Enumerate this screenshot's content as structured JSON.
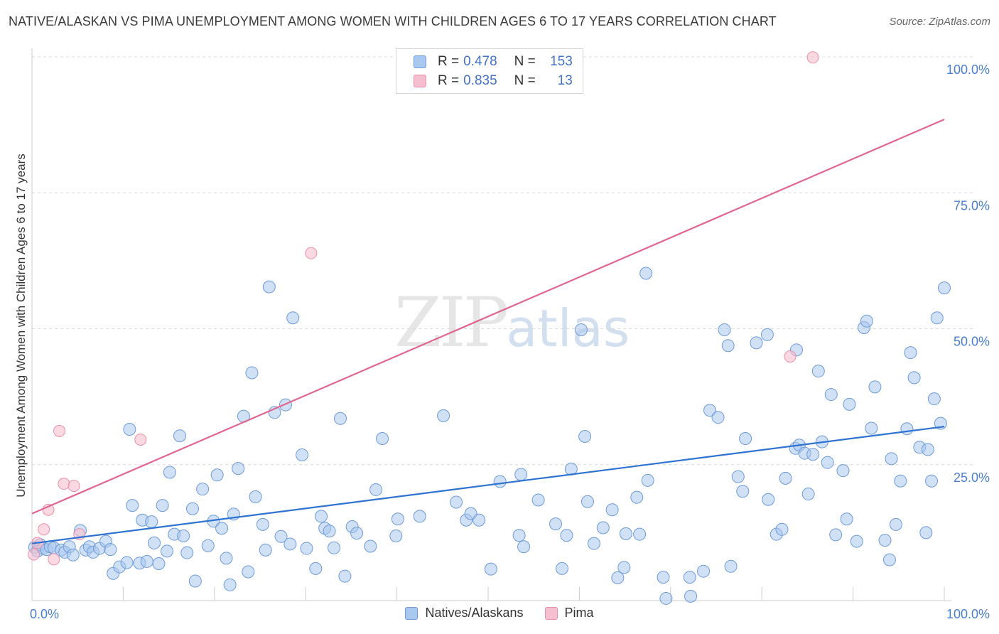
{
  "title": "NATIVE/ALASKAN VS PIMA UNEMPLOYMENT AMONG WOMEN WITH CHILDREN AGES 6 TO 17 YEARS CORRELATION CHART",
  "source": "Source: ZipAtlas.com",
  "watermark": {
    "zip": "ZIP",
    "atlas": "atlas"
  },
  "legend": {
    "rows": [
      {
        "r_label": "R =",
        "r_value": "0.478",
        "n_label": "N =",
        "n_value": "153"
      },
      {
        "r_label": "R =",
        "r_value": "0.835",
        "n_label": "N =",
        "n_value": "13"
      }
    ]
  },
  "bottom_legend": {
    "series1": "Natives/Alaskans",
    "series2": "Pima"
  },
  "colors": {
    "blue_fill": "#a9c8ef",
    "blue_stroke": "#6d9ad6",
    "blue_line": "#2e72d2",
    "pink_fill": "#f6bfcf",
    "pink_stroke": "#e890aa",
    "pink_line": "#e06690",
    "tick_label": "#4a7fd0",
    "grid": "#d9d9d9"
  },
  "chart_data": {
    "type": "scatter",
    "title": "NATIVE/ALASKAN VS PIMA UNEMPLOYMENT AMONG WOMEN WITH CHILDREN AGES 6 TO 17 YEARS CORRELATION CHART",
    "xlabel": "",
    "ylabel": "Unemployment Among Women with Children Ages 6 to 17 years",
    "xlim": [
      0,
      100
    ],
    "ylim": [
      0,
      100
    ],
    "x_tick_labels": [
      {
        "value": 0,
        "label": "0.0%"
      },
      {
        "value": 100,
        "label": "100.0%"
      }
    ],
    "y_tick_labels": [
      {
        "value": 25,
        "label": "25.0%"
      },
      {
        "value": 50,
        "label": "50.0%"
      },
      {
        "value": 75,
        "label": "75.0%"
      },
      {
        "value": 100,
        "label": "100.0%"
      }
    ],
    "series": [
      {
        "name": "Natives/Alaskans",
        "r": 0.478,
        "n": 153,
        "trendline": {
          "x": [
            0,
            100
          ],
          "y": [
            10.5,
            32.0
          ]
        },
        "points": [
          [
            0.3,
            9.8
          ],
          [
            0.6,
            9.1
          ],
          [
            0.9,
            10.3
          ],
          [
            1.2,
            9.6
          ],
          [
            1.6,
            9.4
          ],
          [
            2.0,
            9.9
          ],
          [
            2.4,
            9.7
          ],
          [
            3.2,
            9.3
          ],
          [
            3.6,
            8.9
          ],
          [
            4.1,
            9.9
          ],
          [
            4.5,
            8.4
          ],
          [
            5.3,
            12.9
          ],
          [
            5.9,
            9.3
          ],
          [
            6.3,
            9.9
          ],
          [
            6.7,
            8.9
          ],
          [
            7.4,
            9.6
          ],
          [
            8.1,
            10.9
          ],
          [
            8.6,
            9.4
          ],
          [
            8.9,
            5.0
          ],
          [
            9.6,
            6.2
          ],
          [
            10.4,
            7.0
          ],
          [
            10.7,
            31.5
          ],
          [
            11.0,
            17.5
          ],
          [
            11.8,
            6.9
          ],
          [
            12.1,
            14.8
          ],
          [
            12.6,
            7.2
          ],
          [
            13.1,
            14.5
          ],
          [
            13.4,
            10.6
          ],
          [
            13.9,
            6.8
          ],
          [
            14.3,
            17.5
          ],
          [
            14.8,
            9.1
          ],
          [
            15.1,
            23.6
          ],
          [
            15.6,
            12.2
          ],
          [
            16.2,
            30.3
          ],
          [
            16.6,
            11.9
          ],
          [
            17.0,
            8.8
          ],
          [
            17.6,
            16.9
          ],
          [
            17.9,
            3.6
          ],
          [
            18.7,
            20.5
          ],
          [
            19.3,
            10.1
          ],
          [
            19.9,
            14.6
          ],
          [
            20.3,
            23.1
          ],
          [
            20.8,
            13.3
          ],
          [
            21.3,
            7.8
          ],
          [
            21.7,
            2.9
          ],
          [
            22.1,
            15.9
          ],
          [
            22.6,
            24.3
          ],
          [
            23.2,
            33.9
          ],
          [
            23.7,
            5.3
          ],
          [
            24.1,
            41.9
          ],
          [
            24.5,
            19.1
          ],
          [
            25.3,
            14.0
          ],
          [
            25.6,
            9.3
          ],
          [
            26.0,
            57.7
          ],
          [
            26.6,
            34.6
          ],
          [
            27.3,
            11.8
          ],
          [
            27.8,
            36.0
          ],
          [
            28.3,
            10.4
          ],
          [
            28.6,
            52.0
          ],
          [
            29.6,
            26.8
          ],
          [
            30.1,
            9.6
          ],
          [
            31.1,
            5.9
          ],
          [
            31.7,
            15.5
          ],
          [
            32.1,
            13.3
          ],
          [
            32.6,
            12.8
          ],
          [
            33.1,
            9.7
          ],
          [
            33.8,
            33.5
          ],
          [
            34.3,
            4.5
          ],
          [
            35.1,
            13.6
          ],
          [
            35.6,
            12.4
          ],
          [
            37.1,
            10.0
          ],
          [
            37.7,
            20.4
          ],
          [
            38.4,
            29.8
          ],
          [
            39.9,
            11.9
          ],
          [
            40.1,
            15.0
          ],
          [
            42.5,
            15.5
          ],
          [
            45.1,
            34.0
          ],
          [
            46.5,
            18.1
          ],
          [
            47.6,
            14.8
          ],
          [
            48.1,
            16.0
          ],
          [
            49.0,
            14.8
          ],
          [
            50.3,
            5.8
          ],
          [
            51.3,
            21.9
          ],
          [
            53.4,
            12.0
          ],
          [
            53.6,
            23.2
          ],
          [
            53.9,
            9.9
          ],
          [
            55.5,
            18.5
          ],
          [
            57.4,
            14.1
          ],
          [
            58.1,
            5.9
          ],
          [
            58.6,
            12.0
          ],
          [
            59.1,
            24.2
          ],
          [
            60.2,
            49.8
          ],
          [
            60.6,
            30.2
          ],
          [
            60.9,
            18.2
          ],
          [
            61.6,
            10.5
          ],
          [
            62.6,
            13.4
          ],
          [
            63.6,
            16.7
          ],
          [
            64.2,
            4.2
          ],
          [
            64.9,
            6.1
          ],
          [
            65.1,
            12.3
          ],
          [
            66.3,
            19.0
          ],
          [
            66.6,
            12.2
          ],
          [
            67.3,
            60.2
          ],
          [
            67.5,
            22.1
          ],
          [
            69.2,
            4.3
          ],
          [
            69.5,
            0.4
          ],
          [
            72.1,
            4.3
          ],
          [
            72.2,
            0.8
          ],
          [
            73.6,
            5.4
          ],
          [
            74.3,
            35.0
          ],
          [
            75.2,
            33.7
          ],
          [
            75.9,
            49.8
          ],
          [
            76.3,
            46.9
          ],
          [
            76.6,
            6.3
          ],
          [
            77.4,
            22.8
          ],
          [
            77.9,
            20.1
          ],
          [
            78.2,
            29.8
          ],
          [
            79.4,
            47.4
          ],
          [
            80.6,
            48.9
          ],
          [
            80.7,
            18.6
          ],
          [
            81.6,
            12.2
          ],
          [
            82.2,
            13.1
          ],
          [
            82.6,
            22.5
          ],
          [
            83.7,
            28.0
          ],
          [
            83.8,
            46.1
          ],
          [
            84.1,
            28.6
          ],
          [
            84.7,
            27.1
          ],
          [
            85.1,
            19.6
          ],
          [
            85.6,
            26.9
          ],
          [
            86.2,
            42.2
          ],
          [
            86.6,
            29.2
          ],
          [
            87.2,
            25.4
          ],
          [
            87.6,
            37.9
          ],
          [
            88.1,
            12.1
          ],
          [
            88.9,
            23.9
          ],
          [
            89.3,
            15.0
          ],
          [
            89.6,
            36.1
          ],
          [
            90.4,
            10.9
          ],
          [
            91.2,
            50.2
          ],
          [
            91.5,
            51.4
          ],
          [
            92.0,
            31.7
          ],
          [
            92.4,
            39.3
          ],
          [
            93.5,
            11.1
          ],
          [
            94.0,
            7.5
          ],
          [
            94.2,
            26.1
          ],
          [
            94.7,
            14.0
          ],
          [
            95.2,
            22.0
          ],
          [
            95.9,
            31.6
          ],
          [
            96.3,
            45.6
          ],
          [
            96.7,
            41.0
          ],
          [
            97.3,
            28.2
          ],
          [
            98.0,
            12.5
          ],
          [
            98.2,
            27.8
          ],
          [
            98.6,
            22.0
          ],
          [
            98.9,
            37.1
          ],
          [
            99.2,
            52.0
          ],
          [
            99.6,
            32.6
          ],
          [
            100.0,
            57.5
          ]
        ]
      },
      {
        "name": "Pima",
        "r": 0.835,
        "n": 13,
        "trendline": {
          "x": [
            0,
            100
          ],
          "y": [
            16.0,
            88.5
          ]
        },
        "points": [
          [
            0.2,
            8.5
          ],
          [
            0.6,
            10.6
          ],
          [
            1.3,
            13.1
          ],
          [
            1.8,
            16.7
          ],
          [
            2.4,
            7.6
          ],
          [
            3.0,
            31.2
          ],
          [
            3.5,
            21.5
          ],
          [
            4.6,
            21.1
          ],
          [
            5.2,
            12.2
          ],
          [
            11.9,
            29.6
          ],
          [
            30.6,
            63.9
          ],
          [
            83.1,
            44.9
          ],
          [
            85.6,
            99.9
          ]
        ]
      }
    ]
  }
}
